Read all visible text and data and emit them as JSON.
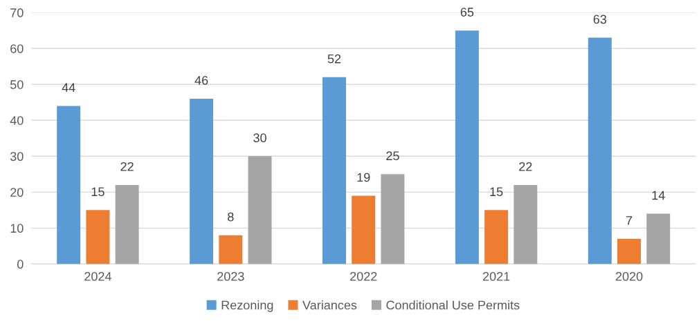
{
  "chart_data": {
    "type": "bar",
    "categories": [
      "2024",
      "2023",
      "2022",
      "2021",
      "2020"
    ],
    "series": [
      {
        "name": "Rezoning",
        "color": "#5b9bd5",
        "values": [
          44,
          46,
          52,
          65,
          63
        ]
      },
      {
        "name": "Variances",
        "color": "#ed7d31",
        "values": [
          15,
          8,
          19,
          15,
          7
        ]
      },
      {
        "name": "Conditional Use Permits",
        "color": "#a5a5a5",
        "values": [
          22,
          30,
          25,
          22,
          14
        ]
      }
    ],
    "ylim": [
      0,
      70
    ],
    "yticks": [
      0,
      10,
      20,
      30,
      40,
      50,
      60,
      70
    ],
    "grid": "y",
    "legend": "bottom",
    "data_labels": true
  }
}
